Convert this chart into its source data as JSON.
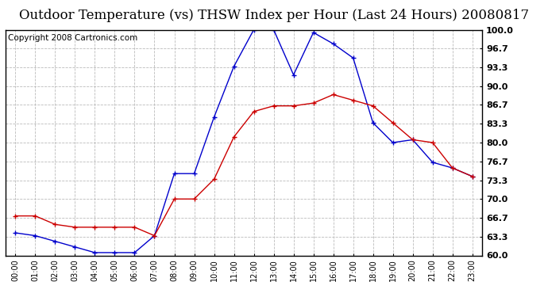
{
  "title": "Outdoor Temperature (vs) THSW Index per Hour (Last 24 Hours) 20080817",
  "copyright_text": "Copyright 2008 Cartronics.com",
  "hours": [
    0,
    1,
    2,
    3,
    4,
    5,
    6,
    7,
    8,
    9,
    10,
    11,
    12,
    13,
    14,
    15,
    16,
    17,
    18,
    19,
    20,
    21,
    22,
    23
  ],
  "hour_labels": [
    "00:00",
    "01:00",
    "02:00",
    "03:00",
    "04:00",
    "05:00",
    "06:00",
    "07:00",
    "08:00",
    "09:00",
    "10:00",
    "11:00",
    "12:00",
    "13:00",
    "14:00",
    "15:00",
    "16:00",
    "17:00",
    "18:00",
    "19:00",
    "20:00",
    "21:00",
    "22:00",
    "23:00"
  ],
  "temp_data": [
    67.0,
    67.0,
    65.5,
    65.0,
    65.0,
    65.0,
    65.0,
    63.5,
    70.0,
    70.0,
    73.5,
    81.0,
    85.5,
    86.5,
    86.5,
    87.0,
    88.5,
    87.5,
    86.5,
    83.5,
    80.5,
    80.0,
    75.5,
    74.0
  ],
  "thsw_data": [
    64.0,
    63.5,
    62.5,
    61.5,
    60.5,
    60.5,
    60.5,
    63.5,
    74.5,
    74.5,
    84.5,
    93.5,
    100.0,
    100.0,
    92.0,
    99.5,
    97.5,
    95.0,
    83.5,
    80.0,
    80.5,
    76.5,
    75.5,
    74.0
  ],
  "ylim": [
    60.0,
    100.0
  ],
  "yticks": [
    60.0,
    63.3,
    66.7,
    70.0,
    73.3,
    76.7,
    80.0,
    83.3,
    86.7,
    90.0,
    93.3,
    96.7,
    100.0
  ],
  "ytick_labels": [
    "60.0",
    "63.3",
    "66.7",
    "70.0",
    "73.3",
    "76.7",
    "80.0",
    "83.3",
    "86.7",
    "90.0",
    "93.3",
    "96.7",
    "100.0"
  ],
  "temp_color": "#cc0000",
  "thsw_color": "#0000cc",
  "grid_color": "#bbbbbb",
  "bg_color": "#ffffff",
  "title_fontsize": 12,
  "copyright_fontsize": 7.5
}
